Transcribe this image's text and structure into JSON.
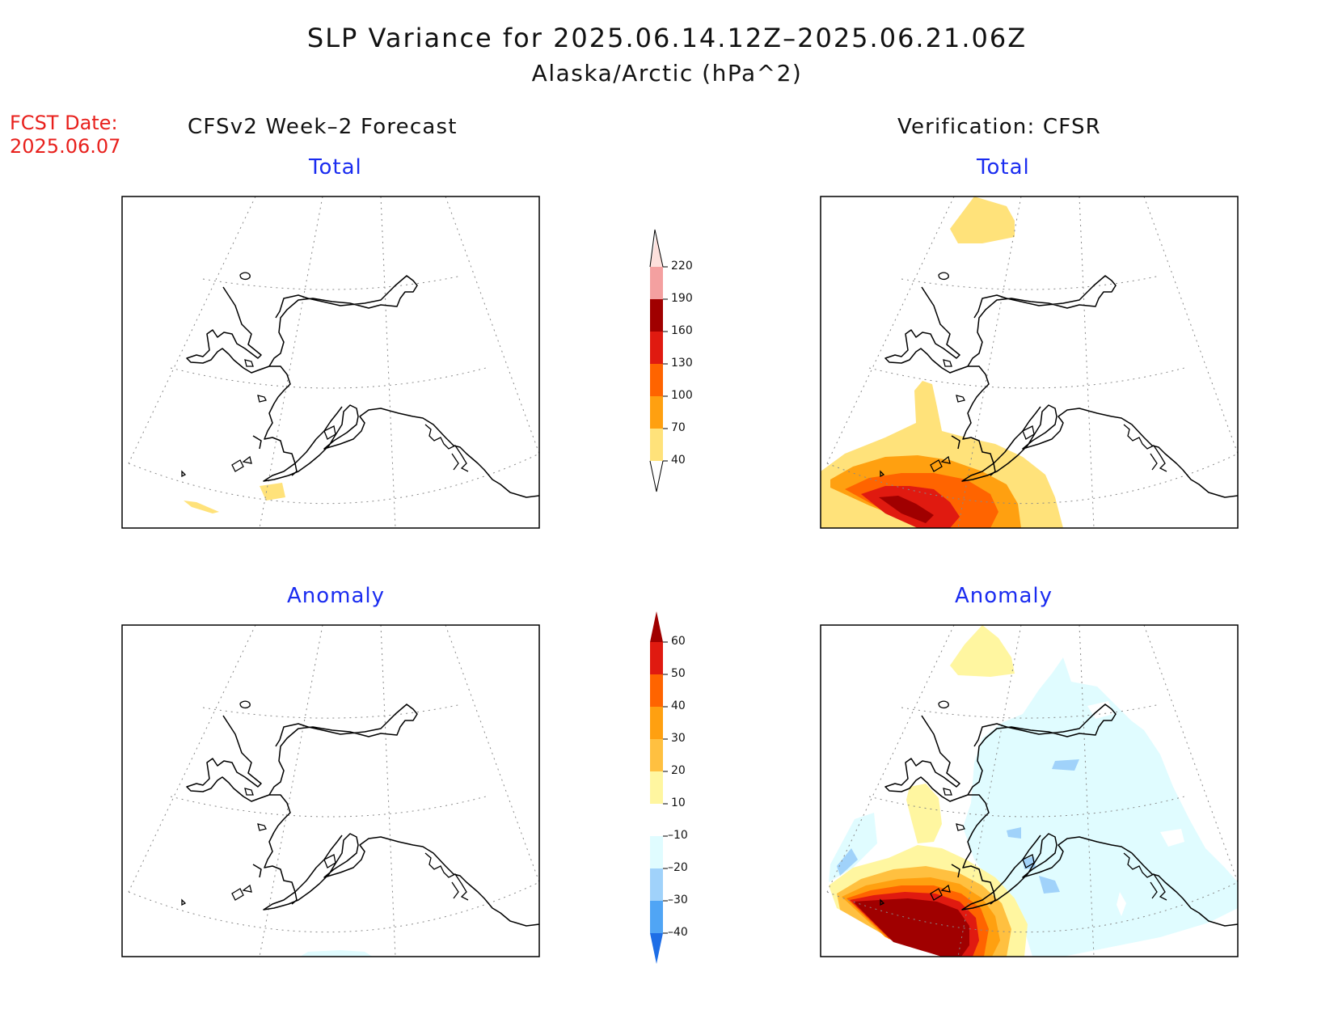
{
  "title": "SLP Variance for 2025.06.14.12Z–2025.06.21.06Z",
  "subtitle": "Alaska/Arctic (hPa^2)",
  "forecast_date": {
    "label": "FCST Date:",
    "value": "2025.06.07"
  },
  "columns": {
    "left": "CFSv2 Week–2 Forecast",
    "right": "Verification: CFSR"
  },
  "panels": {
    "top_left": "Total",
    "top_right": "Total",
    "bottom_left": "Anomaly",
    "bottom_right": "Anomaly"
  },
  "colorbars": {
    "total": {
      "labels": [
        "220",
        "190",
        "160",
        "130",
        "100",
        "70",
        "40"
      ],
      "colors": [
        "#fde0dc",
        "#f4a0a0",
        "#a00000",
        "#e01a10",
        "#ff6400",
        "#ffa010",
        "#ffe27a"
      ]
    },
    "anomaly": {
      "labels": [
        "60",
        "50",
        "40",
        "30",
        "20",
        "10",
        "–10",
        "–20",
        "–30",
        "–40"
      ],
      "colors": [
        "#a00000",
        "#e01a10",
        "#ff6400",
        "#ffa010",
        "#ffc040",
        "#fff6a0",
        "#ffffff",
        "#e0fcff",
        "#a0d2fa",
        "#50a5f5",
        "#1e6ee6"
      ]
    }
  }
}
